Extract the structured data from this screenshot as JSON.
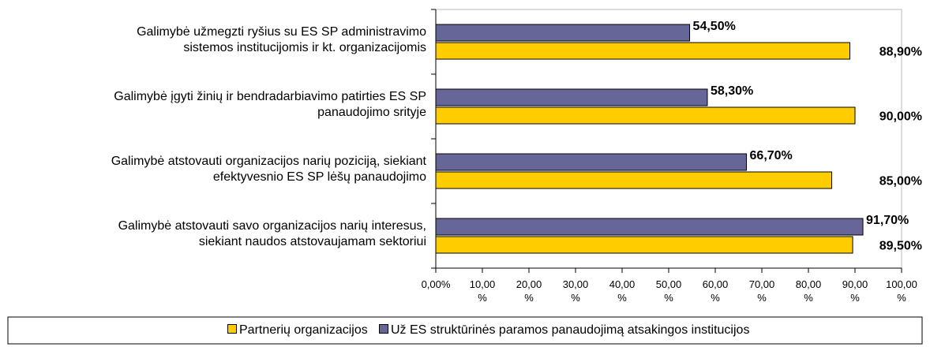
{
  "chart_data": {
    "type": "hbar",
    "categories": [
      "Galimybė užmegzti ryšius su ES SP administravimo\nsistemos institucijomis ir kt. organizacijomis",
      "Galimybė įgyti žinių ir bendradarbiavimo patirties ES SP\npanaudojimo srityje",
      "Galimybė atstovauti organizacijos narių poziciją, siekiant\nefektyvesnio ES SP lėšų panaudojimo",
      "Galimybė atstovauti savo organizacijos narių interesus,\nsiekiant naudos atstovaujamam sektoriui"
    ],
    "series": [
      {
        "name": "Partnerių organizacijos",
        "color": "#ffcc00",
        "values": [
          88.9,
          90.0,
          85.0,
          89.5
        ],
        "value_labels": [
          "88,90%",
          "90,00%",
          "85,00%",
          "89,50%"
        ]
      },
      {
        "name": "Už ES struktūrinės paramos panaudojimą atsakingos institucijos",
        "color": "#666699",
        "values": [
          54.5,
          58.3,
          66.7,
          91.7
        ],
        "value_labels": [
          "54,50%",
          "58,30%",
          "66,70%",
          "91,70%"
        ]
      }
    ],
    "xlim": [
      0,
      100
    ],
    "xticks": [
      {
        "value": 0,
        "label": "0,00%"
      },
      {
        "value": 10,
        "label": "10,00\n%"
      },
      {
        "value": 20,
        "label": "20,00\n%"
      },
      {
        "value": 30,
        "label": "30,00\n%"
      },
      {
        "value": 40,
        "label": "40,00\n%"
      },
      {
        "value": 50,
        "label": "50,00\n%"
      },
      {
        "value": 60,
        "label": "60,00\n%"
      },
      {
        "value": 70,
        "label": "70,00\n%"
      },
      {
        "value": 80,
        "label": "80,00\n%"
      },
      {
        "value": 90,
        "label": "90,00\n%"
      },
      {
        "value": 100,
        "label": "100,00\n%"
      }
    ],
    "legend": "bottom"
  }
}
